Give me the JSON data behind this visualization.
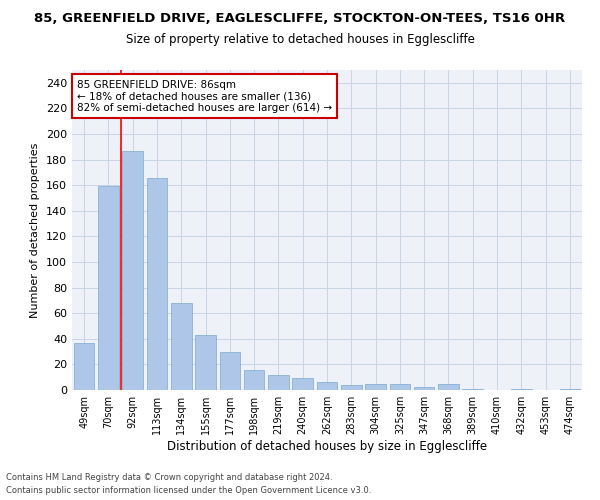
{
  "title": "85, GREENFIELD DRIVE, EAGLESCLIFFE, STOCKTON-ON-TEES, TS16 0HR",
  "subtitle": "Size of property relative to detached houses in Egglescliffe",
  "xlabel": "Distribution of detached houses by size in Egglescliffe",
  "ylabel": "Number of detached properties",
  "categories": [
    "49sqm",
    "70sqm",
    "92sqm",
    "113sqm",
    "134sqm",
    "155sqm",
    "177sqm",
    "198sqm",
    "219sqm",
    "240sqm",
    "262sqm",
    "283sqm",
    "304sqm",
    "325sqm",
    "347sqm",
    "368sqm",
    "389sqm",
    "410sqm",
    "432sqm",
    "453sqm",
    "474sqm"
  ],
  "values": [
    37,
    159,
    187,
    166,
    68,
    43,
    30,
    16,
    12,
    9,
    6,
    4,
    5,
    5,
    2,
    5,
    1,
    0,
    1,
    0,
    1
  ],
  "bar_color": "#aec6e8",
  "bar_edge_color": "#7aaace",
  "grid_color": "#c8d4e8",
  "bg_color": "#eef2f8",
  "annotation_box_text": "85 GREENFIELD DRIVE: 86sqm\n← 18% of detached houses are smaller (136)\n82% of semi-detached houses are larger (614) →",
  "annotation_box_color": "#ffffff",
  "annotation_box_edge_color": "#cc0000",
  "red_line_x": 1.5,
  "footer_line1": "Contains HM Land Registry data © Crown copyright and database right 2024.",
  "footer_line2": "Contains public sector information licensed under the Open Government Licence v3.0.",
  "ylim": [
    0,
    250
  ],
  "yticks": [
    0,
    20,
    40,
    60,
    80,
    100,
    120,
    140,
    160,
    180,
    200,
    220,
    240
  ]
}
